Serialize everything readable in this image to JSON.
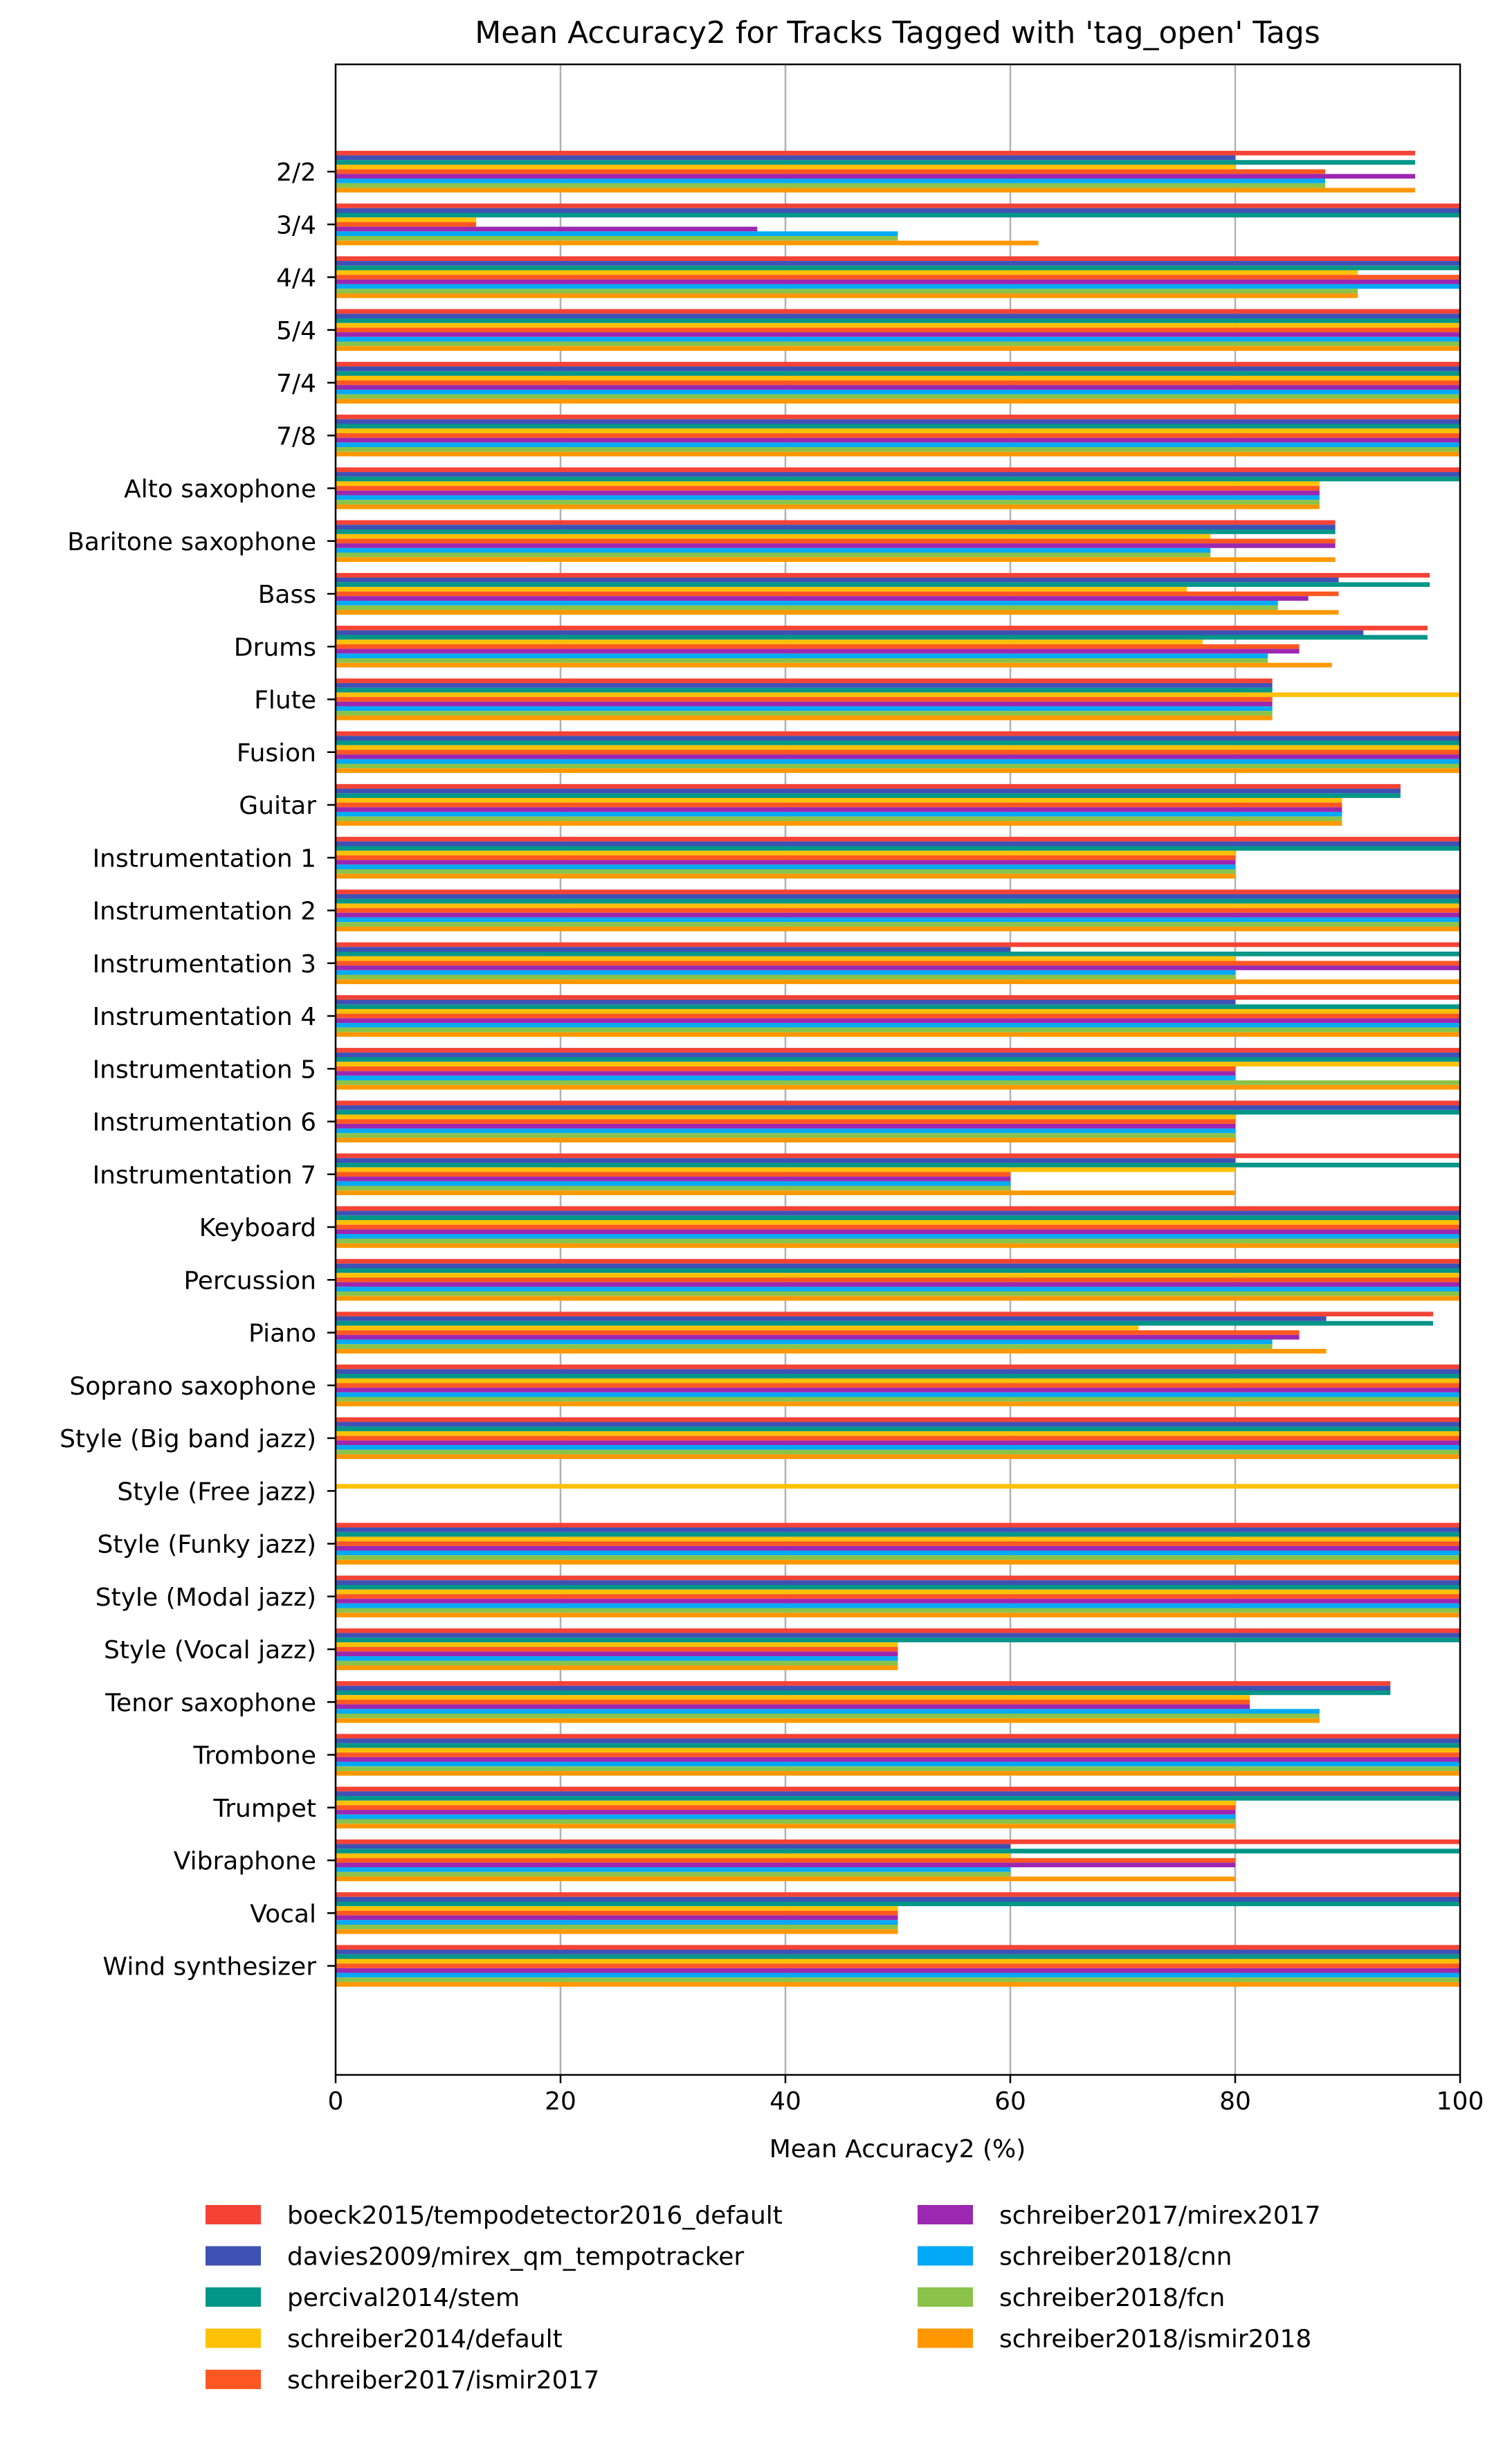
{
  "chart_data": {
    "type": "bar",
    "orientation": "horizontal",
    "title": "Mean Accuracy2 for Tracks Tagged with 'tag_open' Tags",
    "xlabel": "Mean Accuracy2 (%)",
    "ylabel": "",
    "xlim": [
      0,
      100
    ],
    "xticks": [
      "0",
      "20",
      "40",
      "60",
      "80",
      "100"
    ],
    "grid": "vertical lines at x ticks",
    "legend_position": "bottom, two columns",
    "categories": [
      "2/2",
      "3/4",
      "4/4",
      "5/4",
      "7/4",
      "7/8",
      "Alto saxophone",
      "Baritone saxophone",
      "Bass",
      "Drums",
      "Flute",
      "Fusion",
      "Guitar",
      "Instrumentation 1",
      "Instrumentation 2",
      "Instrumentation 3",
      "Instrumentation 4",
      "Instrumentation 5",
      "Instrumentation 6",
      "Instrumentation 7",
      "Keyboard",
      "Percussion",
      "Piano",
      "Soprano saxophone",
      "Style (Big band jazz)",
      "Style (Free jazz)",
      "Style (Funky jazz)",
      "Style (Modal jazz)",
      "Style (Vocal jazz)",
      "Tenor saxophone",
      "Trombone",
      "Trumpet",
      "Vibraphone",
      "Vocal",
      "Wind synthesizer"
    ],
    "series": [
      {
        "name": "boeck2015/tempodetector2016_default",
        "color": "#f44336",
        "values": [
          96,
          100,
          100,
          100,
          100,
          100,
          100,
          88.9,
          97.3,
          97.1,
          83.3,
          100,
          94.7,
          100,
          100,
          100,
          100,
          100,
          100,
          100,
          100,
          100,
          97.6,
          100,
          100,
          0,
          100,
          100,
          100,
          93.8,
          100,
          100,
          100,
          100,
          100
        ]
      },
      {
        "name": "davies2009/mirex_qm_tempotracker",
        "color": "#3f51b5",
        "values": [
          80,
          100,
          100,
          100,
          100,
          100,
          100,
          88.9,
          89.2,
          91.4,
          83.3,
          100,
          94.7,
          100,
          100,
          60,
          80,
          100,
          100,
          80,
          100,
          100,
          88.1,
          100,
          100,
          0,
          100,
          100,
          100,
          93.8,
          100,
          100,
          60,
          100,
          100
        ]
      },
      {
        "name": "percival2014/stem",
        "color": "#009688",
        "values": [
          96,
          100,
          100,
          100,
          100,
          100,
          100,
          88.9,
          97.3,
          97.1,
          83.3,
          100,
          94.7,
          100,
          100,
          100,
          100,
          100,
          100,
          100,
          100,
          100,
          97.6,
          100,
          100,
          0,
          100,
          100,
          100,
          93.8,
          100,
          100,
          100,
          100,
          100
        ]
      },
      {
        "name": "schreiber2014/default",
        "color": "#ffc107",
        "values": [
          80,
          12.5,
          90.9,
          100,
          100,
          100,
          87.5,
          77.8,
          75.7,
          77.1,
          100,
          100,
          89.5,
          80,
          100,
          80,
          100,
          100,
          80,
          80,
          100,
          100,
          71.4,
          100,
          100,
          100,
          100,
          100,
          50,
          81.3,
          100,
          80,
          60,
          50,
          100
        ]
      },
      {
        "name": "schreiber2017/ismir2017",
        "color": "#ff5722",
        "values": [
          88,
          12.5,
          100,
          100,
          100,
          100,
          87.5,
          88.9,
          89.2,
          85.7,
          83.3,
          100,
          89.5,
          80,
          100,
          100,
          100,
          80,
          80,
          60,
          100,
          100,
          85.7,
          100,
          100,
          0,
          100,
          100,
          50,
          81.3,
          100,
          80,
          80,
          50,
          100
        ]
      },
      {
        "name": "schreiber2017/mirex2017",
        "color": "#9c27b0",
        "values": [
          96,
          37.5,
          100,
          100,
          100,
          100,
          87.5,
          88.9,
          86.5,
          85.7,
          83.3,
          100,
          89.5,
          80,
          100,
          100,
          100,
          80,
          80,
          60,
          100,
          100,
          85.7,
          100,
          100,
          0,
          100,
          100,
          50,
          81.3,
          100,
          80,
          80,
          50,
          100
        ]
      },
      {
        "name": "schreiber2018/cnn",
        "color": "#03a9f4",
        "values": [
          88,
          50,
          100,
          100,
          100,
          100,
          87.5,
          77.8,
          83.8,
          82.9,
          83.3,
          100,
          89.5,
          80,
          100,
          80,
          100,
          80,
          80,
          60,
          100,
          100,
          83.3,
          100,
          100,
          0,
          100,
          100,
          50,
          87.5,
          100,
          80,
          60,
          50,
          100
        ]
      },
      {
        "name": "schreiber2018/fcn",
        "color": "#8bc34a",
        "values": [
          88,
          50,
          90.9,
          100,
          100,
          100,
          87.5,
          77.8,
          83.8,
          82.9,
          83.3,
          100,
          89.5,
          80,
          100,
          80,
          100,
          100,
          80,
          60,
          100,
          100,
          83.3,
          100,
          100,
          0,
          100,
          100,
          50,
          87.5,
          100,
          80,
          60,
          50,
          100
        ]
      },
      {
        "name": "schreiber2018/ismir2018",
        "color": "#ff9800",
        "values": [
          96,
          62.5,
          90.9,
          100,
          100,
          100,
          87.5,
          88.9,
          89.2,
          88.6,
          83.3,
          100,
          89.5,
          80,
          100,
          100,
          100,
          100,
          80,
          80,
          100,
          100,
          88.1,
          100,
          100,
          0,
          100,
          100,
          50,
          87.5,
          100,
          80,
          80,
          50,
          100
        ]
      }
    ],
    "legend_order": [
      0,
      1,
      2,
      3,
      4,
      5,
      6,
      7,
      8
    ],
    "legend_layout": {
      "columns": 2,
      "column1": [
        0,
        1,
        2,
        3,
        4
      ],
      "column2": [
        5,
        6,
        7,
        8
      ]
    }
  }
}
